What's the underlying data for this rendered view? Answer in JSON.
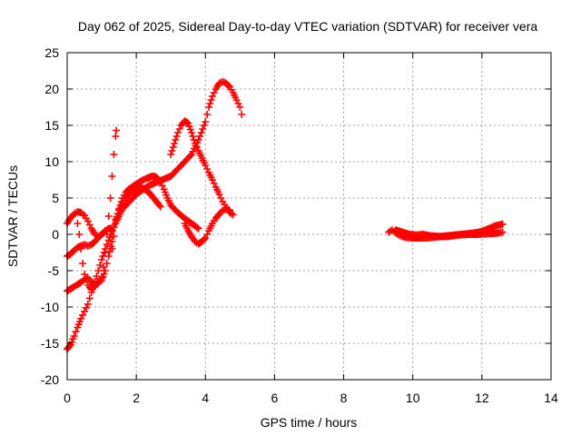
{
  "chart_data": {
    "type": "scatter",
    "title": "Day 062 of 2025, Sidereal Day-to-day VTEC variation (SDTVAR) for receiver vera",
    "xlabel": "GPS time / hours",
    "ylabel": "SDTVAR / TECUs",
    "xlim": [
      0,
      14
    ],
    "ylim": [
      -20,
      25
    ],
    "x_ticks": [
      "0",
      "2",
      "4",
      "6",
      "8",
      "10",
      "12",
      "14"
    ],
    "y_ticks": [
      "-20",
      "-15",
      "-10",
      "-5",
      "0",
      "5",
      "10",
      "15",
      "20",
      "25"
    ],
    "grid": true,
    "marker": "plus",
    "color": "#ff0000",
    "series": [
      {
        "points": [
          [
            0.0,
            1.5
          ],
          [
            0.1,
            2.3
          ],
          [
            0.2,
            2.8
          ],
          [
            0.3,
            3.1
          ],
          [
            0.4,
            3.0
          ],
          [
            0.5,
            2.6
          ],
          [
            0.6,
            1.8
          ],
          [
            0.7,
            0.8
          ],
          [
            0.8,
            0.0
          ],
          [
            0.9,
            -0.3
          ],
          [
            1.0,
            0.0
          ],
          [
            1.1,
            0.5
          ],
          [
            1.2,
            0.8
          ],
          [
            1.3,
            0.6
          ]
        ]
      },
      {
        "points": [
          [
            0.0,
            -3.0
          ],
          [
            0.1,
            -2.7
          ],
          [
            0.2,
            -2.2
          ],
          [
            0.3,
            -1.8
          ],
          [
            0.4,
            -1.6
          ],
          [
            0.5,
            -1.4
          ],
          [
            0.6,
            -1.6
          ],
          [
            0.7,
            -1.4
          ],
          [
            0.8,
            -1.0
          ],
          [
            0.9,
            -0.5
          ],
          [
            1.0,
            0.0
          ],
          [
            1.1,
            0.4
          ],
          [
            1.2,
            0.8
          ]
        ]
      },
      {
        "points": [
          [
            0.0,
            -7.8
          ],
          [
            0.1,
            -7.5
          ],
          [
            0.2,
            -7.2
          ],
          [
            0.3,
            -6.9
          ],
          [
            0.4,
            -6.6
          ],
          [
            0.5,
            -6.2
          ],
          [
            0.6,
            -6.0
          ],
          [
            0.7,
            -6.5
          ],
          [
            0.8,
            -7.0
          ],
          [
            0.9,
            -6.7
          ],
          [
            1.0,
            -6.3
          ],
          [
            1.1,
            -5.0
          ],
          [
            1.2,
            -3.0
          ],
          [
            1.3,
            -1.0
          ]
        ]
      },
      {
        "points": [
          [
            0.0,
            -15.8
          ],
          [
            0.1,
            -15.2
          ],
          [
            0.2,
            -14.0
          ],
          [
            0.3,
            -12.8
          ],
          [
            0.4,
            -11.6
          ],
          [
            0.5,
            -10.6
          ],
          [
            0.6,
            -9.6
          ],
          [
            0.7,
            -8.0
          ],
          [
            0.8,
            -6.5
          ],
          [
            0.9,
            -5.0
          ],
          [
            1.0,
            -3.5
          ],
          [
            1.1,
            -2.0
          ],
          [
            1.2,
            -0.8
          ],
          [
            1.3,
            0.4
          ],
          [
            1.4,
            1.5
          ],
          [
            1.5,
            2.5
          ],
          [
            1.6,
            3.5
          ],
          [
            1.8,
            4.5
          ],
          [
            2.0,
            5.5
          ],
          [
            2.2,
            6.2
          ],
          [
            2.4,
            6.8
          ],
          [
            2.6,
            7.2
          ],
          [
            2.8,
            7.6
          ],
          [
            3.0,
            8.0
          ],
          [
            3.2,
            9.0
          ],
          [
            3.4,
            10.0
          ],
          [
            3.6,
            11.0
          ],
          [
            3.8,
            13.0
          ],
          [
            4.0,
            15.5
          ],
          [
            4.1,
            17.5
          ],
          [
            4.2,
            19.0
          ],
          [
            4.3,
            20.0
          ],
          [
            4.4,
            20.8
          ],
          [
            4.5,
            21.0
          ],
          [
            4.6,
            20.8
          ],
          [
            4.7,
            20.3
          ],
          [
            4.8,
            19.5
          ],
          [
            4.9,
            18.5
          ],
          [
            5.0,
            17.5
          ],
          [
            5.05,
            16.5
          ]
        ]
      },
      {
        "points": [
          [
            0.3,
            1.5
          ],
          [
            0.35,
            0.0
          ],
          [
            0.4,
            -2.0
          ],
          [
            0.45,
            -4.0
          ],
          [
            0.5,
            -5.5
          ],
          [
            0.6,
            -7.0
          ],
          [
            0.7,
            -7.6
          ],
          [
            0.8,
            -7.2
          ],
          [
            0.9,
            -6.5
          ],
          [
            1.0,
            -6.0
          ],
          [
            1.05,
            -4.5
          ],
          [
            1.1,
            -2.5
          ],
          [
            1.15,
            0.0
          ],
          [
            1.2,
            2.5
          ],
          [
            1.25,
            5.0
          ],
          [
            1.3,
            8.0
          ],
          [
            1.35,
            11.0
          ],
          [
            1.4,
            13.5
          ],
          [
            1.42,
            14.3
          ]
        ]
      },
      {
        "points": [
          [
            1.3,
            0.5
          ],
          [
            1.4,
            2.0
          ],
          [
            1.5,
            3.3
          ],
          [
            1.6,
            4.2
          ],
          [
            1.7,
            5.0
          ],
          [
            1.8,
            5.6
          ],
          [
            1.9,
            6.0
          ],
          [
            2.0,
            6.2
          ],
          [
            2.1,
            6.4
          ],
          [
            2.2,
            6.3
          ],
          [
            2.3,
            6.0
          ],
          [
            2.4,
            5.6
          ],
          [
            2.5,
            5.0
          ],
          [
            2.6,
            4.4
          ],
          [
            2.7,
            3.8
          ]
        ]
      },
      {
        "points": [
          [
            1.3,
            -2.0
          ],
          [
            1.4,
            1.5
          ],
          [
            1.5,
            3.5
          ],
          [
            1.6,
            5.0
          ],
          [
            1.7,
            5.8
          ],
          [
            1.8,
            6.3
          ],
          [
            1.9,
            6.6
          ],
          [
            2.0,
            6.9
          ],
          [
            2.1,
            7.2
          ],
          [
            2.2,
            7.5
          ],
          [
            2.3,
            7.7
          ],
          [
            2.4,
            7.9
          ],
          [
            2.5,
            8.0
          ],
          [
            2.6,
            7.8
          ],
          [
            2.7,
            7.2
          ],
          [
            2.8,
            6.2
          ],
          [
            2.9,
            5.0
          ],
          [
            3.0,
            4.0
          ],
          [
            3.2,
            3.0
          ],
          [
            3.4,
            2.2
          ],
          [
            3.6,
            1.5
          ],
          [
            3.8,
            0.8
          ]
        ]
      },
      {
        "points": [
          [
            3.0,
            11.0
          ],
          [
            3.1,
            12.5
          ],
          [
            3.2,
            14.0
          ],
          [
            3.3,
            15.0
          ],
          [
            3.4,
            15.6
          ],
          [
            3.5,
            15.3
          ],
          [
            3.6,
            14.0
          ],
          [
            3.7,
            12.5
          ],
          [
            3.8,
            11.5
          ],
          [
            3.9,
            10.5
          ],
          [
            4.0,
            9.5
          ],
          [
            4.1,
            8.5
          ],
          [
            4.2,
            7.5
          ],
          [
            4.3,
            6.5
          ],
          [
            4.4,
            5.5
          ],
          [
            4.5,
            4.5
          ],
          [
            4.6,
            3.7
          ],
          [
            4.7,
            3.0
          ],
          [
            4.8,
            2.7
          ]
        ]
      },
      {
        "points": [
          [
            3.4,
            1.5
          ],
          [
            3.5,
            0.5
          ],
          [
            3.6,
            -0.3
          ],
          [
            3.7,
            -1.0
          ],
          [
            3.8,
            -1.3
          ],
          [
            3.9,
            -1.0
          ],
          [
            4.0,
            -0.5
          ],
          [
            4.1,
            0.5
          ],
          [
            4.2,
            1.5
          ],
          [
            4.3,
            2.2
          ],
          [
            4.4,
            2.8
          ],
          [
            4.5,
            3.3
          ],
          [
            4.6,
            3.5
          ],
          [
            4.7,
            3.3
          ]
        ]
      },
      {
        "points": [
          [
            9.3,
            0.3
          ],
          [
            9.4,
            0.6
          ],
          [
            9.5,
            0.2
          ],
          [
            9.6,
            -0.1
          ],
          [
            9.7,
            -0.3
          ],
          [
            9.8,
            -0.4
          ],
          [
            10.0,
            -0.5
          ],
          [
            10.2,
            -0.5
          ],
          [
            10.4,
            -0.5
          ],
          [
            10.6,
            -0.4
          ],
          [
            10.8,
            -0.3
          ],
          [
            11.0,
            -0.2
          ],
          [
            11.2,
            -0.1
          ],
          [
            11.4,
            0.0
          ],
          [
            11.6,
            0.1
          ],
          [
            11.8,
            0.2
          ],
          [
            12.0,
            0.4
          ],
          [
            12.2,
            0.8
          ],
          [
            12.4,
            1.2
          ],
          [
            12.6,
            1.4
          ]
        ]
      },
      {
        "points": [
          [
            9.5,
            0.6
          ],
          [
            9.7,
            0.3
          ],
          [
            9.9,
            0.0
          ],
          [
            10.1,
            -0.1
          ],
          [
            10.3,
            0.0
          ],
          [
            10.5,
            -0.2
          ],
          [
            10.8,
            -0.3
          ],
          [
            11.0,
            -0.3
          ],
          [
            11.3,
            -0.1
          ],
          [
            11.6,
            0.0
          ],
          [
            11.9,
            0.0
          ],
          [
            12.2,
            0.1
          ],
          [
            12.5,
            0.2
          ],
          [
            12.6,
            0.3
          ]
        ]
      }
    ]
  }
}
